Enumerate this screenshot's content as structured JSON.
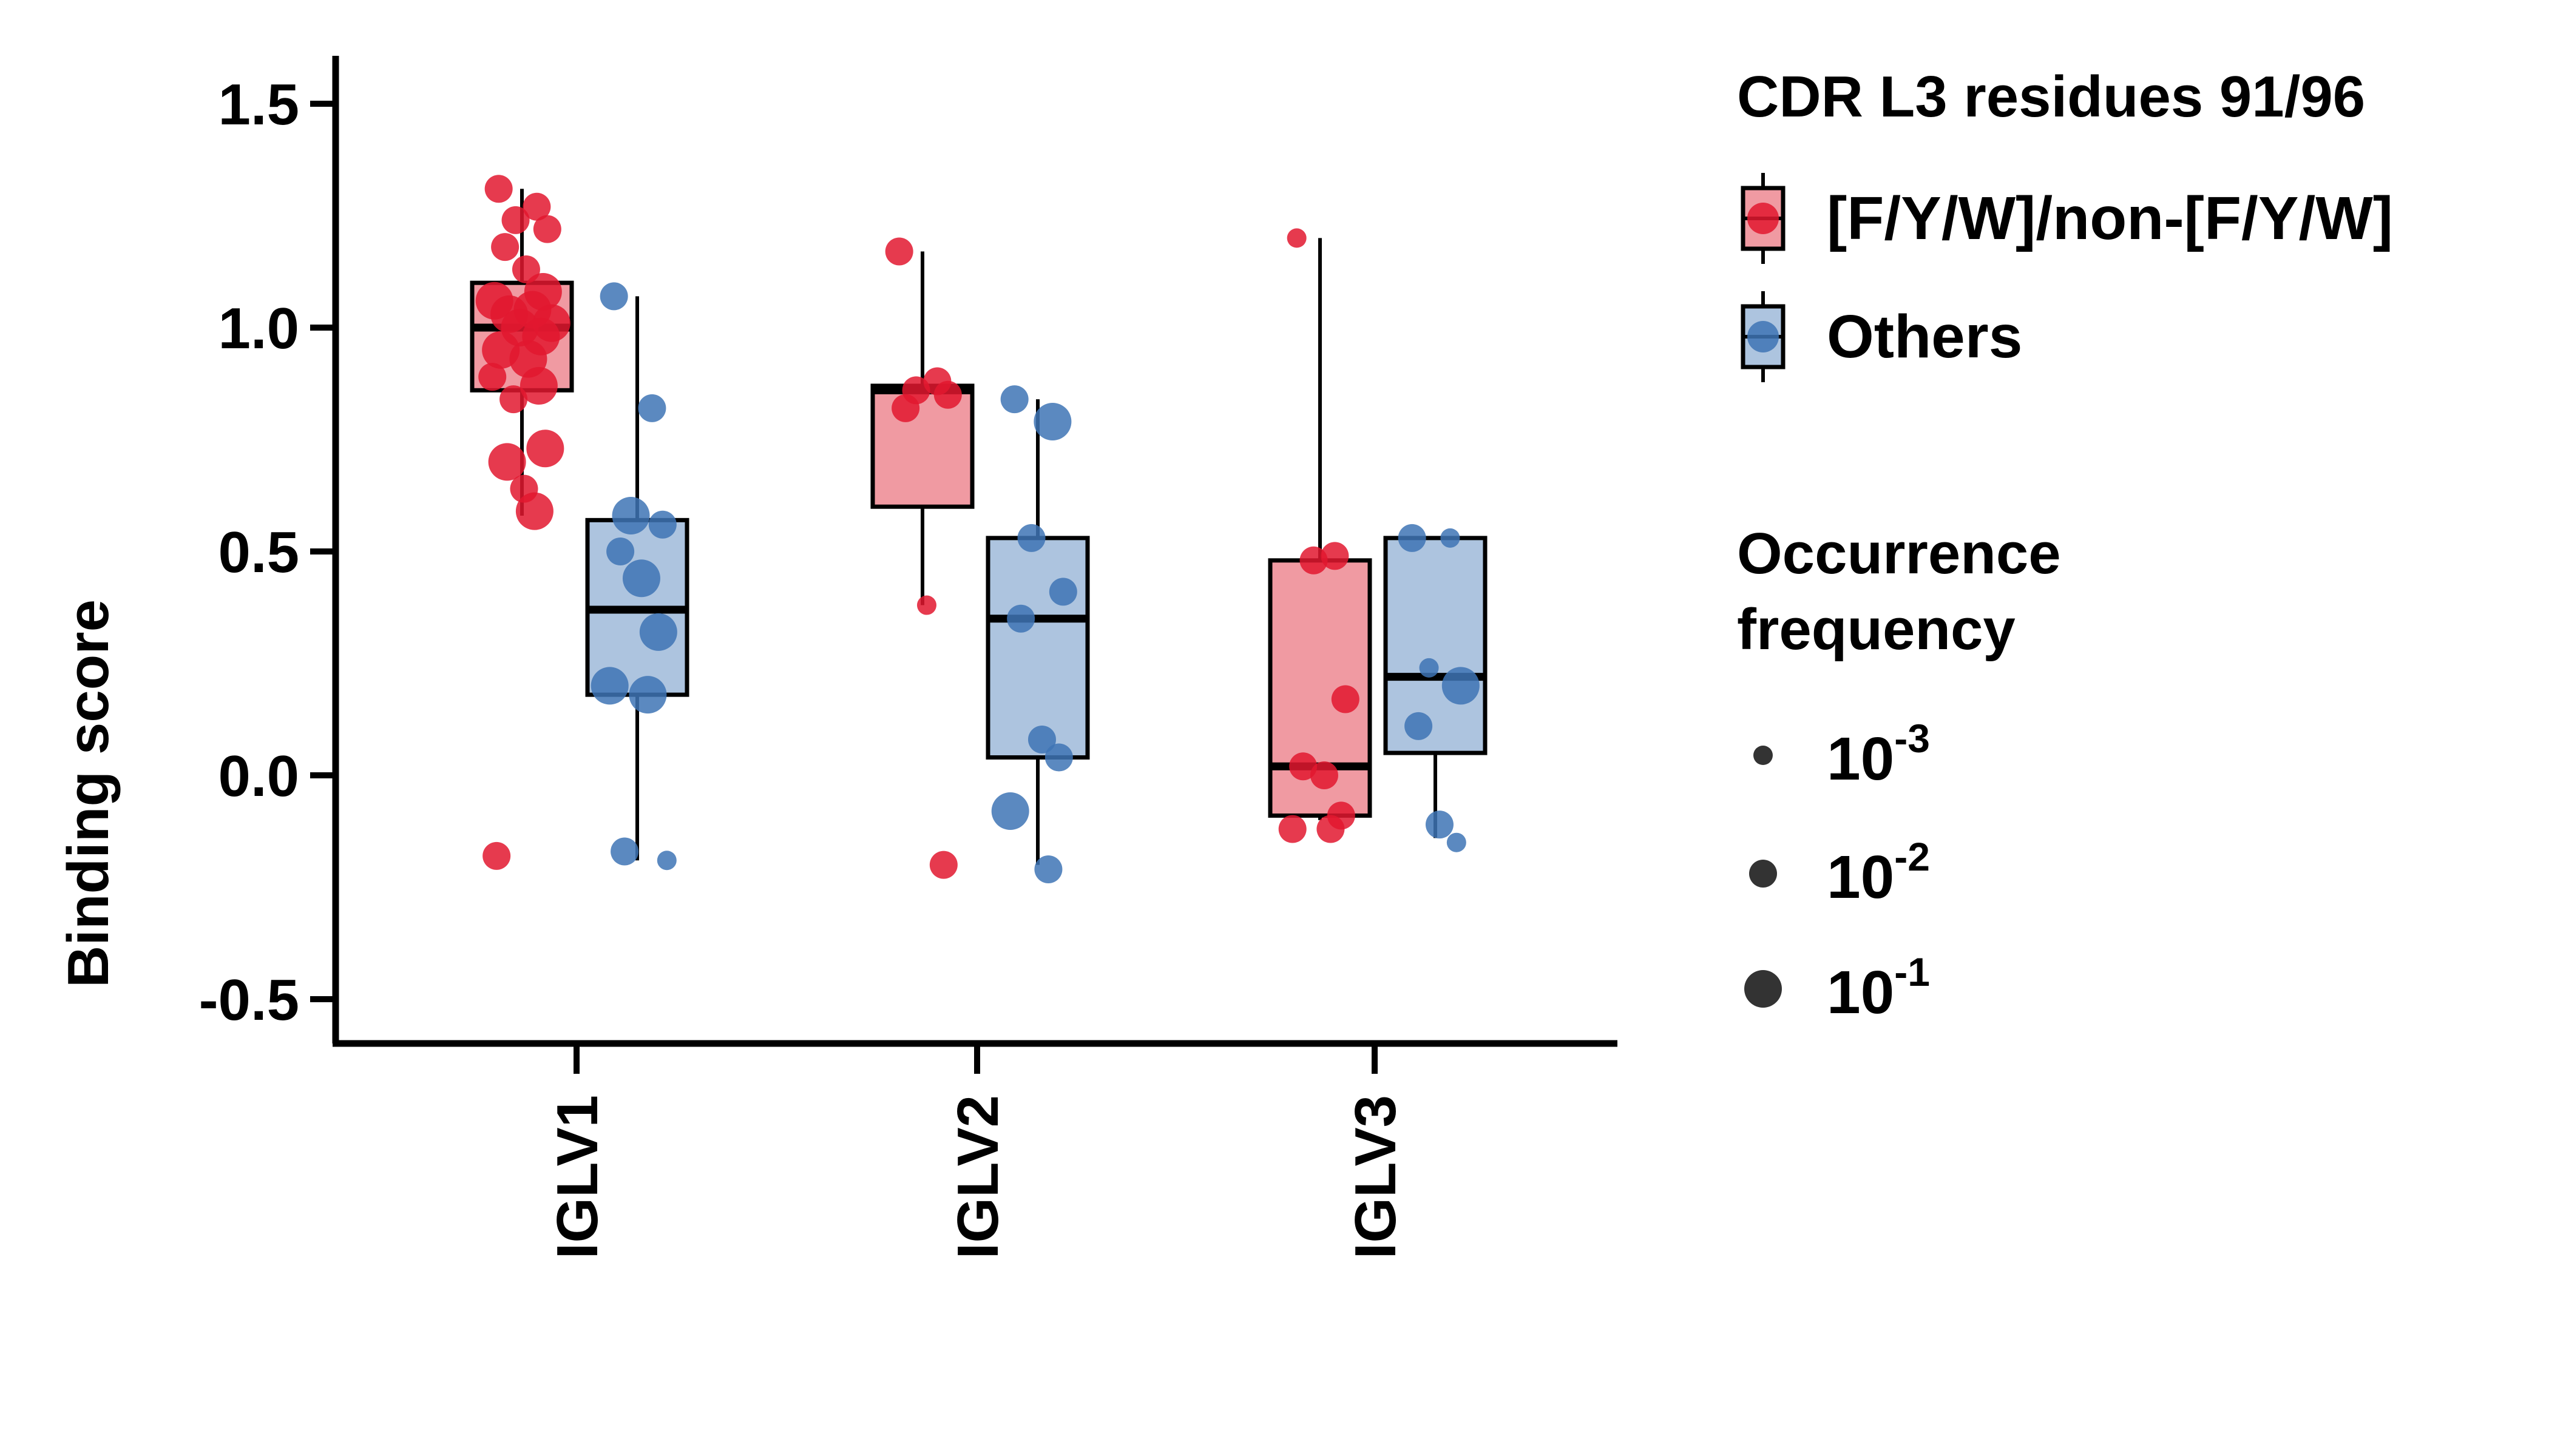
{
  "chart_data": {
    "type": "box",
    "ylabel": "Binding score",
    "xlabel": "",
    "ylim": [
      -0.6,
      1.6
    ],
    "yticks": [
      -0.5,
      0.0,
      0.5,
      1.0,
      1.5
    ],
    "ytick_labels": [
      "-0.5",
      "0.0",
      "0.5",
      "1.0",
      "1.5"
    ],
    "categories": [
      "IGLV1",
      "IGLV2",
      "IGLV3"
    ],
    "legend_position": "right",
    "legend": {
      "group_title": "CDR L3 residues 91/96",
      "size_title_line1": "Occurrence",
      "size_title_line2": "frequency",
      "size_base": "10",
      "size_exponents": [
        "-3",
        "-2",
        "-1"
      ]
    },
    "colors": {
      "fyw_fill": "#f09aa2",
      "fyw_point": "#e2182f",
      "others_fill": "#adc4df",
      "others_point": "#3e74b5",
      "size_legend_point": "#333333"
    },
    "series": [
      {
        "name": "[F/Y/W]/non-[F/Y/W]",
        "boxes": [
          {
            "category": "IGLV1",
            "whisker_low": 0.58,
            "q1": 0.86,
            "median": 1.0,
            "q3": 1.1,
            "whisker_high": 1.31,
            "points": [
              {
                "y": 1.31,
                "freq": 0.01
              },
              {
                "y": 1.27,
                "freq": 0.01
              },
              {
                "y": 1.24,
                "freq": 0.01
              },
              {
                "y": 1.22,
                "freq": 0.01
              },
              {
                "y": 1.18,
                "freq": 0.01
              },
              {
                "y": 1.13,
                "freq": 0.01
              },
              {
                "y": 1.08,
                "freq": 0.1
              },
              {
                "y": 1.06,
                "freq": 0.1
              },
              {
                "y": 1.04,
                "freq": 0.1
              },
              {
                "y": 1.03,
                "freq": 0.1
              },
              {
                "y": 1.01,
                "freq": 0.1
              },
              {
                "y": 1.0,
                "freq": 0.1
              },
              {
                "y": 0.98,
                "freq": 0.1
              },
              {
                "y": 0.95,
                "freq": 0.1
              },
              {
                "y": 0.93,
                "freq": 0.1
              },
              {
                "y": 0.89,
                "freq": 0.01
              },
              {
                "y": 0.87,
                "freq": 0.1
              },
              {
                "y": 0.84,
                "freq": 0.01
              },
              {
                "y": 0.73,
                "freq": 0.1
              },
              {
                "y": 0.7,
                "freq": 0.1
              },
              {
                "y": 0.64,
                "freq": 0.01
              },
              {
                "y": 0.59,
                "freq": 0.1
              },
              {
                "y": -0.18,
                "freq": 0.01
              }
            ]
          },
          {
            "category": "IGLV2",
            "whisker_low": 0.38,
            "q1": 0.6,
            "median": 0.86,
            "q3": 0.87,
            "whisker_high": 1.17,
            "points": [
              {
                "y": 1.17,
                "freq": 0.01
              },
              {
                "y": 0.88,
                "freq": 0.01
              },
              {
                "y": 0.86,
                "freq": 0.01
              },
              {
                "y": 0.85,
                "freq": 0.01
              },
              {
                "y": 0.82,
                "freq": 0.01
              },
              {
                "y": 0.38,
                "freq": 0.001
              },
              {
                "y": -0.2,
                "freq": 0.01
              }
            ]
          },
          {
            "category": "IGLV3",
            "whisker_low": -0.1,
            "q1": -0.09,
            "median": 0.02,
            "q3": 0.48,
            "whisker_high": 1.2,
            "points": [
              {
                "y": 1.2,
                "freq": 0.001
              },
              {
                "y": 0.49,
                "freq": 0.01
              },
              {
                "y": 0.48,
                "freq": 0.01
              },
              {
                "y": 0.17,
                "freq": 0.01
              },
              {
                "y": 0.02,
                "freq": 0.01
              },
              {
                "y": 0.0,
                "freq": 0.01
              },
              {
                "y": -0.09,
                "freq": 0.01
              },
              {
                "y": -0.12,
                "freq": 0.01
              },
              {
                "y": -0.12,
                "freq": 0.01
              }
            ]
          }
        ]
      },
      {
        "name": "Others",
        "boxes": [
          {
            "category": "IGLV1",
            "whisker_low": -0.19,
            "q1": 0.18,
            "median": 0.37,
            "q3": 0.57,
            "whisker_high": 1.07,
            "points": [
              {
                "y": 1.07,
                "freq": 0.01
              },
              {
                "y": 0.82,
                "freq": 0.01
              },
              {
                "y": 0.58,
                "freq": 0.1
              },
              {
                "y": 0.56,
                "freq": 0.01
              },
              {
                "y": 0.5,
                "freq": 0.01
              },
              {
                "y": 0.44,
                "freq": 0.1
              },
              {
                "y": 0.32,
                "freq": 0.1
              },
              {
                "y": 0.2,
                "freq": 0.1
              },
              {
                "y": 0.18,
                "freq": 0.1
              },
              {
                "y": -0.17,
                "freq": 0.01
              },
              {
                "y": -0.19,
                "freq": 0.001
              }
            ]
          },
          {
            "category": "IGLV2",
            "whisker_low": -0.2,
            "q1": 0.04,
            "median": 0.35,
            "q3": 0.53,
            "whisker_high": 0.84,
            "points": [
              {
                "y": 0.84,
                "freq": 0.01
              },
              {
                "y": 0.79,
                "freq": 0.1
              },
              {
                "y": 0.53,
                "freq": 0.01
              },
              {
                "y": 0.41,
                "freq": 0.01
              },
              {
                "y": 0.35,
                "freq": 0.01
              },
              {
                "y": 0.08,
                "freq": 0.01
              },
              {
                "y": 0.04,
                "freq": 0.01
              },
              {
                "y": -0.08,
                "freq": 0.1
              },
              {
                "y": -0.21,
                "freq": 0.01
              }
            ]
          },
          {
            "category": "IGLV3",
            "whisker_low": -0.14,
            "q1": 0.05,
            "median": 0.22,
            "q3": 0.53,
            "whisker_high": 0.53,
            "points": [
              {
                "y": 0.53,
                "freq": 0.01
              },
              {
                "y": 0.53,
                "freq": 0.001
              },
              {
                "y": 0.24,
                "freq": 0.001
              },
              {
                "y": 0.2,
                "freq": 0.1
              },
              {
                "y": 0.11,
                "freq": 0.01
              },
              {
                "y": -0.11,
                "freq": 0.01
              },
              {
                "y": -0.15,
                "freq": 0.001
              }
            ]
          }
        ]
      }
    ]
  }
}
